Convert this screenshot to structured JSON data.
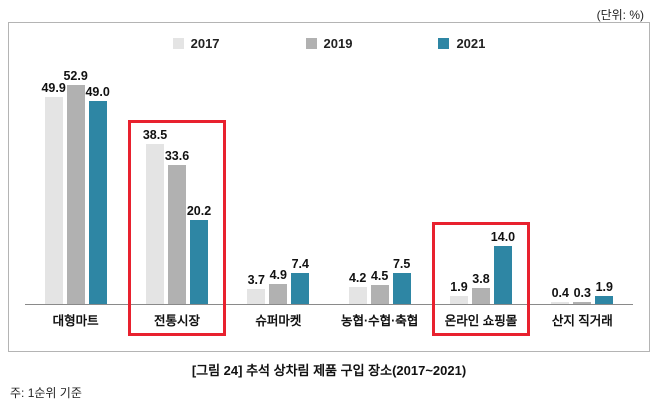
{
  "unit_note": "(단위:  %)",
  "caption": "[그림 24] 추석 상차림 제품 구입 장소(2017~2021)",
  "footnote": "주: 1순위 기준",
  "chart_data": {
    "type": "bar",
    "title": "추석 상차림 제품 구입 장소(2017~2021)",
    "unit": "%",
    "categories": [
      "대형마트",
      "전통시장",
      "슈퍼마켓",
      "농협·수협·축협",
      "온라인 쇼핑몰",
      "산지 직거래"
    ],
    "series": [
      {
        "name": "2017",
        "color": "#e4e4e4",
        "values": [
          49.9,
          38.5,
          3.7,
          4.2,
          1.9,
          0.4
        ]
      },
      {
        "name": "2019",
        "color": "#b1b1b1",
        "values": [
          52.9,
          33.6,
          4.9,
          4.5,
          3.8,
          0.3
        ]
      },
      {
        "name": "2021",
        "color": "#2e86a4",
        "values": [
          49.0,
          20.2,
          7.4,
          7.5,
          14.0,
          1.9
        ]
      }
    ],
    "highlighted_categories": [
      "전통시장",
      "온라인 쇼핑몰"
    ],
    "highlight_color": "#e8212e",
    "ylim": [
      0,
      55
    ],
    "grid": false,
    "legend_position": "top",
    "value_labels": true
  }
}
